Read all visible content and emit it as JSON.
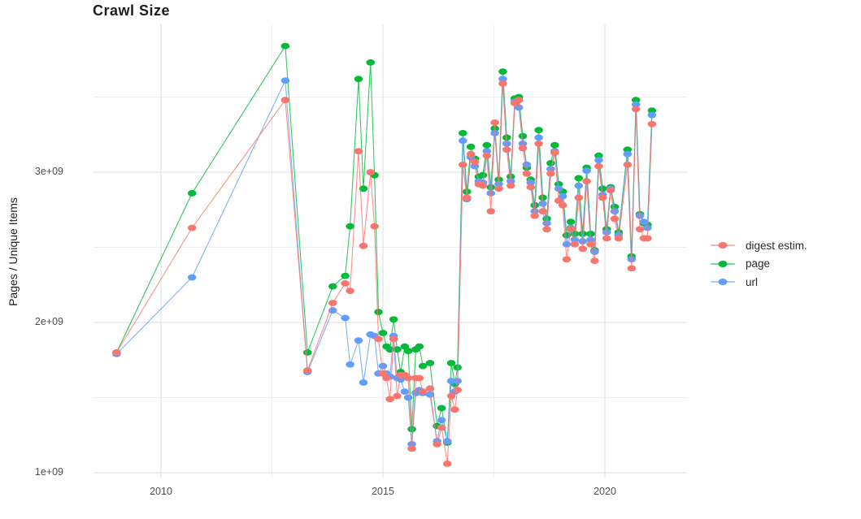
{
  "title": "Crawl Size",
  "axes": {
    "y": {
      "label": "Pages / Unique Items",
      "ticks": [
        {
          "label": "1e+09",
          "value": 1
        },
        {
          "label": "2e+09",
          "value": 2
        },
        {
          "label": "3e+09",
          "value": 3
        }
      ],
      "minor": [
        1.5,
        2.5,
        3.5
      ]
    },
    "x": {
      "ticks": [
        {
          "label": "2010",
          "value": 2010
        },
        {
          "label": "2015",
          "value": 2015
        },
        {
          "label": "2020",
          "value": 2020
        }
      ],
      "minor": [
        2012.5,
        2017.5
      ]
    }
  },
  "legend": {
    "items": [
      {
        "label": "digest estim.",
        "color": "#F8766D",
        "series": "digest"
      },
      {
        "label": "page",
        "color": "#00BA38",
        "series": "page"
      },
      {
        "label": "url",
        "color": "#619CFF",
        "series": "url"
      }
    ]
  },
  "chart_data": {
    "type": "line",
    "title": "Crawl Size",
    "xlabel": "",
    "ylabel": "Pages / Unique Items",
    "values_unit": "billions of pages / unique items (1e9)",
    "xlim": [
      2008.5,
      2021.85
    ],
    "ylim": [
      0.97,
      3.99
    ],
    "grid": true,
    "legend_position": "right",
    "x": [
      2009.0,
      2010.7,
      2012.8,
      2013.3,
      2013.87,
      2014.15,
      2014.26,
      2014.45,
      2014.56,
      2014.72,
      2014.81,
      2014.9,
      2015.0,
      2015.08,
      2015.16,
      2015.24,
      2015.32,
      2015.4,
      2015.49,
      2015.57,
      2015.65,
      2015.74,
      2015.82,
      2015.9,
      2016.06,
      2016.22,
      2016.32,
      2016.45,
      2016.54,
      2016.62,
      2016.68,
      2016.8,
      2016.89,
      2016.98,
      2017.07,
      2017.16,
      2017.25,
      2017.34,
      2017.43,
      2017.52,
      2017.61,
      2017.7,
      2017.79,
      2017.88,
      2017.97,
      2018.06,
      2018.15,
      2018.24,
      2018.33,
      2018.42,
      2018.51,
      2018.6,
      2018.69,
      2018.78,
      2018.87,
      2018.96,
      2019.05,
      2019.14,
      2019.23,
      2019.32,
      2019.41,
      2019.5,
      2019.59,
      2019.68,
      2019.77,
      2019.86,
      2019.95,
      2020.04,
      2020.13,
      2020.22,
      2020.31,
      2020.51,
      2020.6,
      2020.7,
      2020.79,
      2020.88,
      2020.96,
      2021.06
    ],
    "series": [
      {
        "name": "page",
        "color": "#00BA38",
        "values": [
          1.8,
          2.86,
          3.84,
          1.8,
          2.24,
          2.31,
          2.64,
          3.62,
          2.89,
          3.73,
          2.98,
          2.07,
          1.93,
          1.84,
          1.82,
          2.02,
          1.82,
          1.67,
          1.84,
          1.81,
          1.29,
          1.82,
          1.84,
          1.71,
          1.73,
          1.31,
          1.43,
          1.2,
          1.73,
          1.59,
          1.7,
          3.26,
          2.87,
          3.17,
          3.09,
          2.97,
          2.98,
          3.18,
          2.9,
          3.29,
          2.95,
          3.67,
          3.23,
          2.97,
          3.49,
          3.5,
          3.24,
          3.03,
          2.95,
          2.78,
          3.28,
          2.83,
          2.69,
          3.06,
          3.18,
          2.92,
          2.87,
          2.58,
          2.67,
          2.59,
          2.96,
          2.59,
          3.03,
          2.59,
          2.48,
          3.11,
          2.89,
          2.62,
          2.9,
          2.77,
          2.6,
          3.15,
          2.44,
          3.48,
          2.72,
          2.66,
          2.65,
          3.41
        ]
      },
      {
        "name": "url",
        "color": "#619CFF",
        "values": [
          1.79,
          2.3,
          3.61,
          1.67,
          2.08,
          2.03,
          1.72,
          1.88,
          1.6,
          1.92,
          1.91,
          1.66,
          1.71,
          1.66,
          1.64,
          1.91,
          1.63,
          1.62,
          1.54,
          1.5,
          1.19,
          1.53,
          1.55,
          1.53,
          1.52,
          1.21,
          1.35,
          1.21,
          1.61,
          1.54,
          1.61,
          3.21,
          2.82,
          3.1,
          3.04,
          2.94,
          2.93,
          3.14,
          2.86,
          3.26,
          2.92,
          3.62,
          3.19,
          2.94,
          3.47,
          3.43,
          3.19,
          3.05,
          2.93,
          2.74,
          3.23,
          2.79,
          2.66,
          3.02,
          3.14,
          2.89,
          2.84,
          2.52,
          2.63,
          2.55,
          2.91,
          2.54,
          3.01,
          2.55,
          2.47,
          3.08,
          2.85,
          2.6,
          2.89,
          2.74,
          2.58,
          3.12,
          2.42,
          3.45,
          2.71,
          2.67,
          2.63,
          3.38
        ]
      },
      {
        "name": "digest estim.",
        "color": "#F8766D",
        "values": [
          1.8,
          2.63,
          3.48,
          1.68,
          2.13,
          2.26,
          2.21,
          3.14,
          2.51,
          3.0,
          2.64,
          1.89,
          1.66,
          1.63,
          1.49,
          1.89,
          1.51,
          1.65,
          1.65,
          1.63,
          1.16,
          1.63,
          1.63,
          1.54,
          1.56,
          1.19,
          1.3,
          1.06,
          1.51,
          1.42,
          1.55,
          3.05,
          2.83,
          3.12,
          3.07,
          2.92,
          2.91,
          3.11,
          2.74,
          3.33,
          2.89,
          3.59,
          3.15,
          2.91,
          3.46,
          3.48,
          3.16,
          2.99,
          2.9,
          2.71,
          3.19,
          2.74,
          2.62,
          2.99,
          3.13,
          2.81,
          2.78,
          2.42,
          2.62,
          2.52,
          2.83,
          2.49,
          2.94,
          2.52,
          2.41,
          3.04,
          2.83,
          2.56,
          2.88,
          2.69,
          2.56,
          3.05,
          2.36,
          3.42,
          2.62,
          2.56,
          2.56,
          3.32
        ]
      }
    ]
  },
  "style": {
    "background": "#ffffff",
    "grid_major_color": "#e4e4e4",
    "grid_minor_color": "#f0f0f0",
    "tick_text_color": "#4d4d4d",
    "title_color": "#1d1d1d"
  }
}
